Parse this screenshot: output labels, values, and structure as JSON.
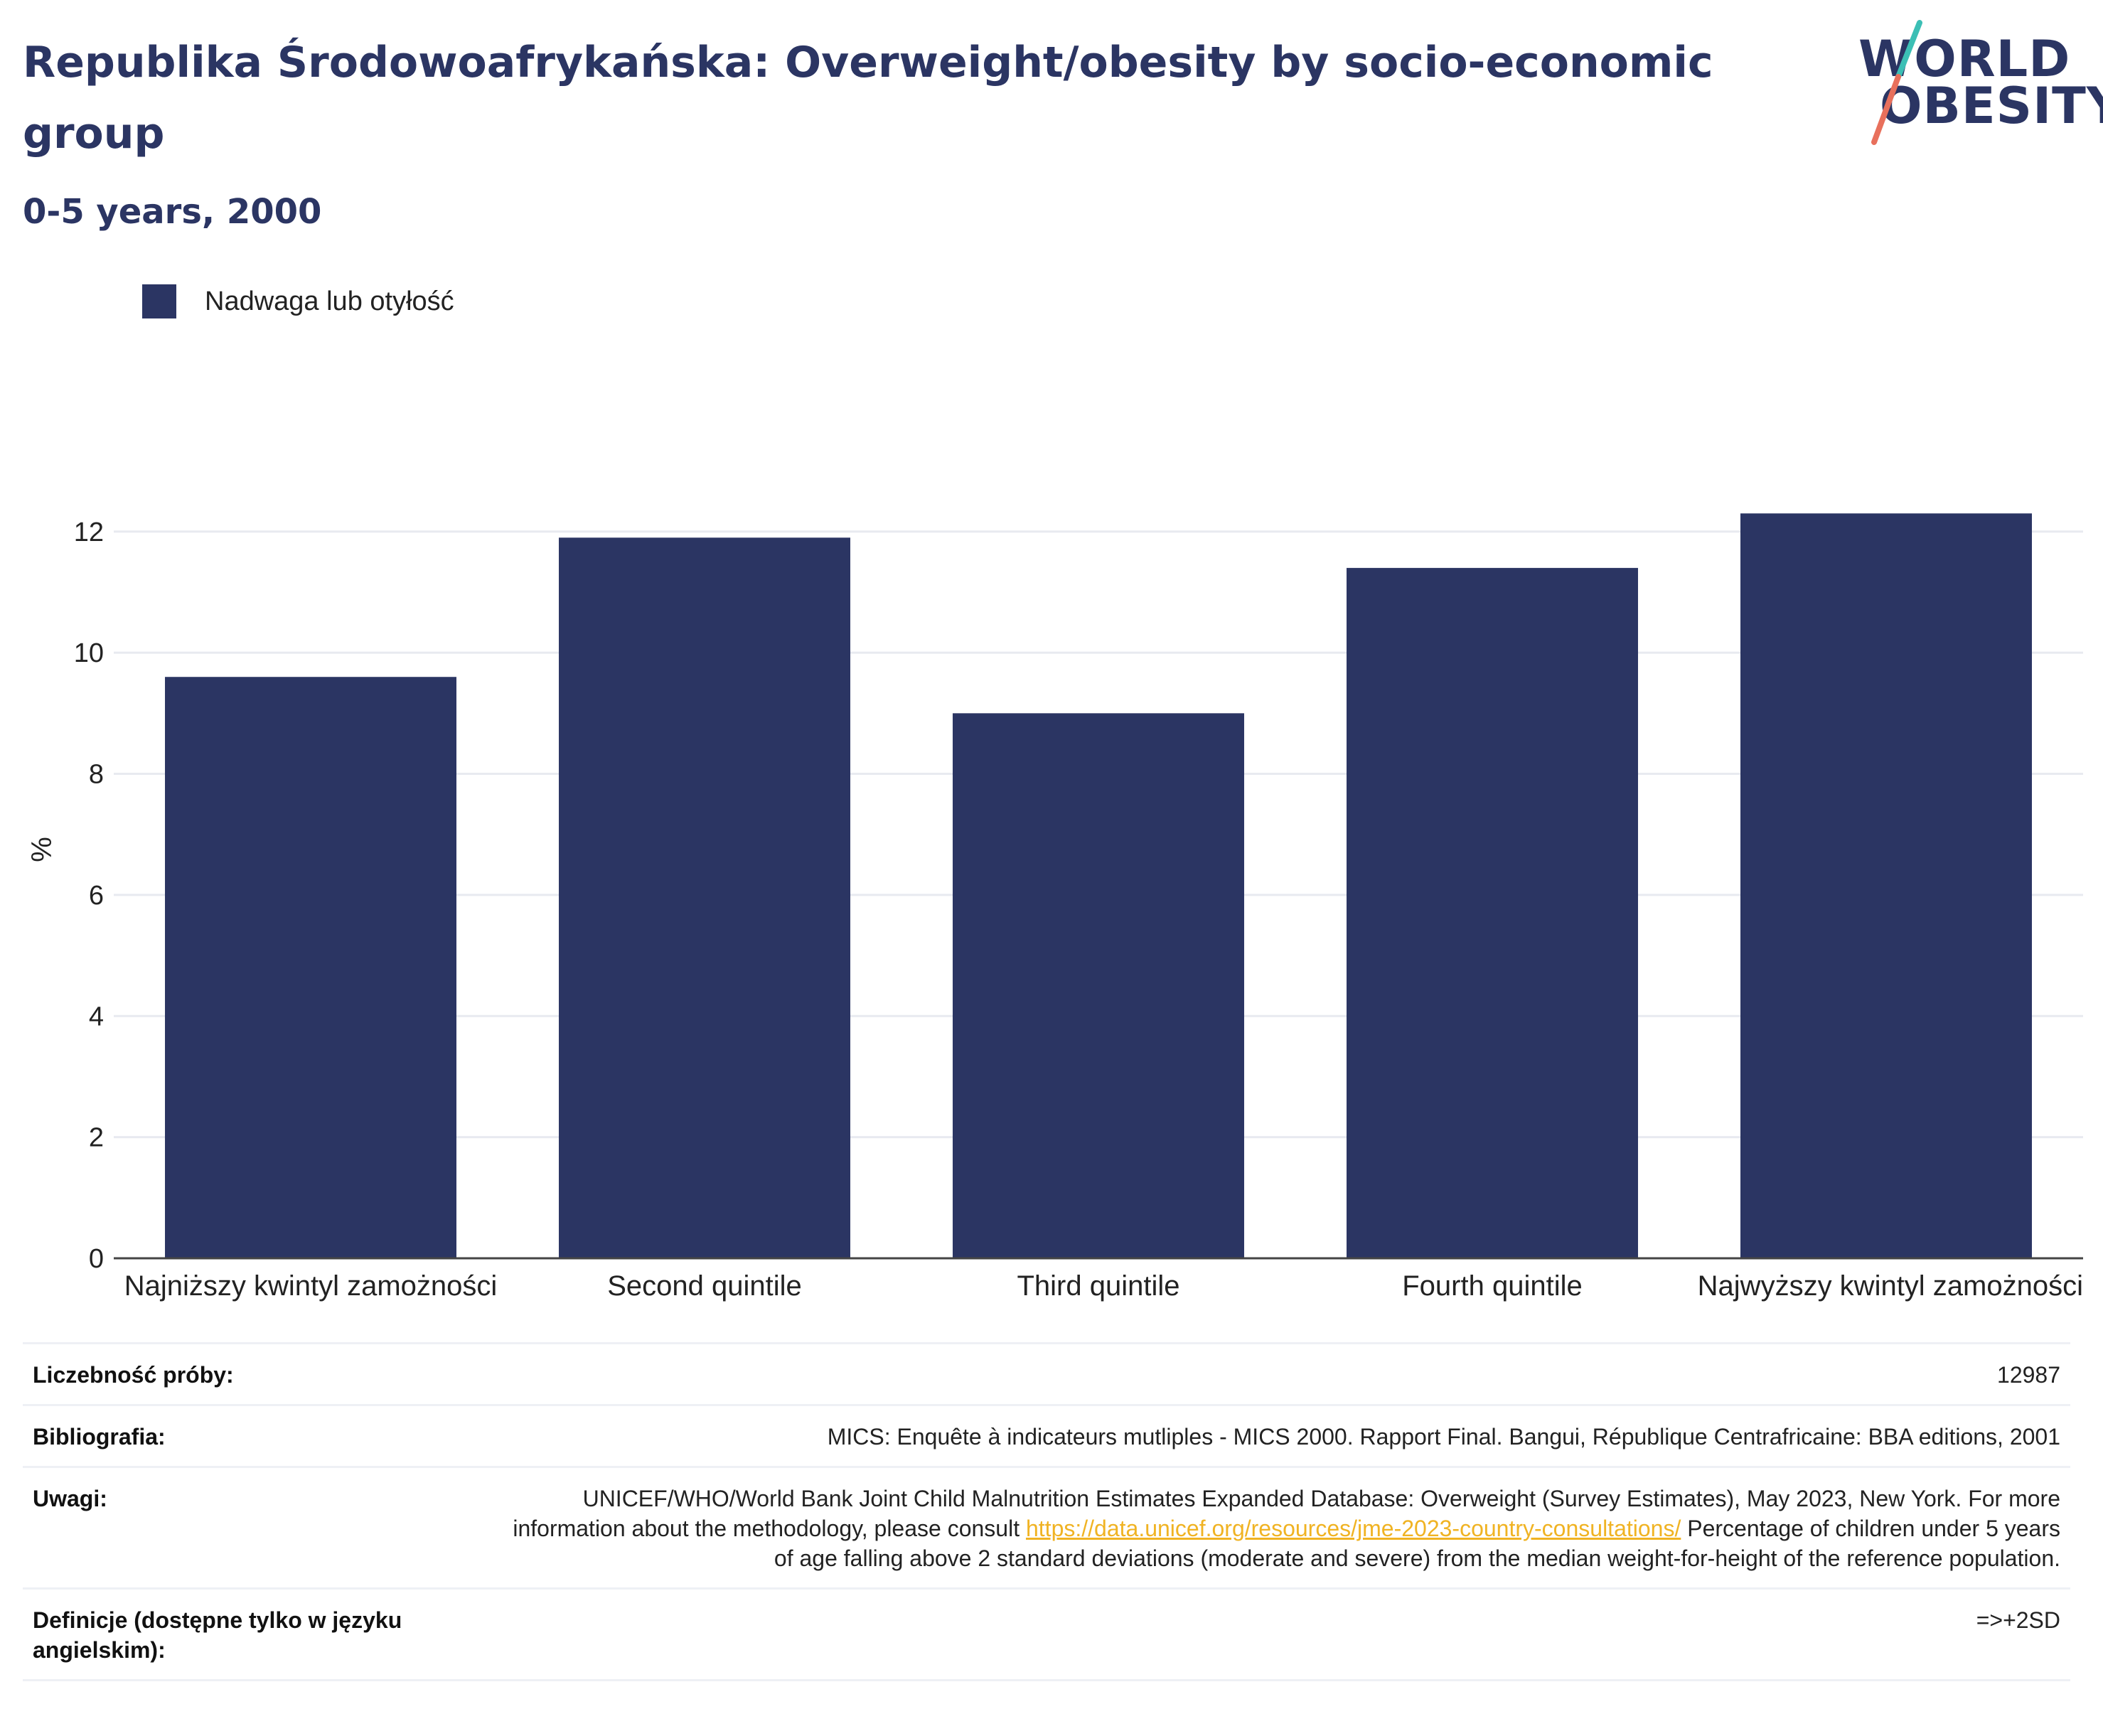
{
  "header": {
    "title": "Republika Środowoafrykańska: Overweight/obesity by socio-economic group",
    "subtitle": "0-5 years, 2000"
  },
  "logo": {
    "line1": "WORLD",
    "line2": "OBESITY",
    "colors": {
      "text": "#2b3563",
      "slash_top": "#3cbfb5",
      "slash_bottom": "#e8705c"
    }
  },
  "legend": {
    "label": "Nadwaga lub otyłość"
  },
  "colors": {
    "bar": "#2b3563",
    "grid": "#e8eaf0",
    "axis": "#444444"
  },
  "chart_data": {
    "type": "bar",
    "categories": [
      "Najniższy kwintyl zamożności",
      "Second quintile",
      "Third quintile",
      "Fourth quintile",
      "Najwyższy kwintyl zamożności"
    ],
    "series": [
      {
        "name": "Nadwaga lub otyłość",
        "values": [
          9.6,
          11.9,
          9.0,
          11.4,
          12.3
        ]
      }
    ],
    "ylabel": "%",
    "ylim": [
      0,
      13.5
    ],
    "yticks": [
      0,
      2,
      4,
      6,
      8,
      10,
      12
    ],
    "grid": true,
    "legend_position": "top-left"
  },
  "meta": {
    "sample_label": "Liczebność próby:",
    "sample_value": "12987",
    "bib_label": "Bibliografia:",
    "bib_value": "MICS: Enquête à indicateurs mutliples - MICS 2000. Rapport Final. Bangui, République Centrafricaine: BBA editions, 2001",
    "notes_label": "Uwagi:",
    "notes_text1": "UNICEF/WHO/World Bank Joint Child Malnutrition Estimates Expanded Database: Overweight (Survey Estimates), May 2023, New York. For more information about the methodology, please consult ",
    "notes_link": "https://data.unicef.org/resources/jme-2023-country-consultations/",
    "notes_text2": " Percentage of children under 5 years of age falling above 2 standard deviations (moderate and severe) from the median weight-for-height of the reference population.",
    "def_label": "Definicje (dostępne tylko w języku angielskim):",
    "def_value": "=>+2SD"
  }
}
